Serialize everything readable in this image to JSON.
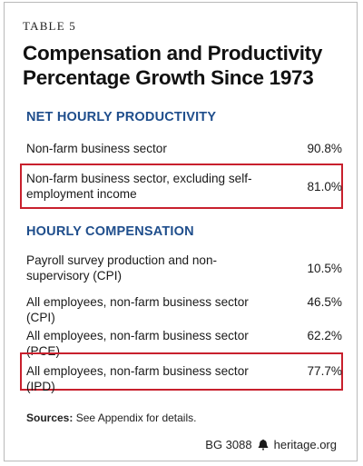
{
  "table_label": "TABLE 5",
  "title_line1": "Compensation and Productivity",
  "title_line2": "Percentage Growth Since 1973",
  "sections": [
    {
      "heading": "NET HOURLY PRODUCTIVITY",
      "rows": [
        {
          "label": "Non-farm business sector",
          "value": "90.8%",
          "highlighted": false
        },
        {
          "label": "Non-farm business sector, excluding self-employment income",
          "value": "81.0%",
          "highlighted": true
        }
      ]
    },
    {
      "heading": "HOURLY COMPENSATION",
      "rows": [
        {
          "label": "Payroll survey production and non-supervisory (CPI)",
          "value": "10.5%",
          "highlighted": false
        },
        {
          "label": "All employees, non-farm business sector (CPI)",
          "value": "46.5%",
          "highlighted": false
        },
        {
          "label": "All employees, non-farm business sector (PCE)",
          "value": "62.2%",
          "highlighted": false
        },
        {
          "label": "All employees, non-farm business sector (IPD)",
          "value": "77.7%",
          "highlighted": true
        }
      ]
    }
  ],
  "sources_label": "Sources:",
  "sources_text": "See Appendix for details.",
  "footer_code": "BG 3088",
  "footer_site": "heritage.org",
  "colors": {
    "heading": "#1f4e8c",
    "highlight_border": "#c8202d"
  }
}
